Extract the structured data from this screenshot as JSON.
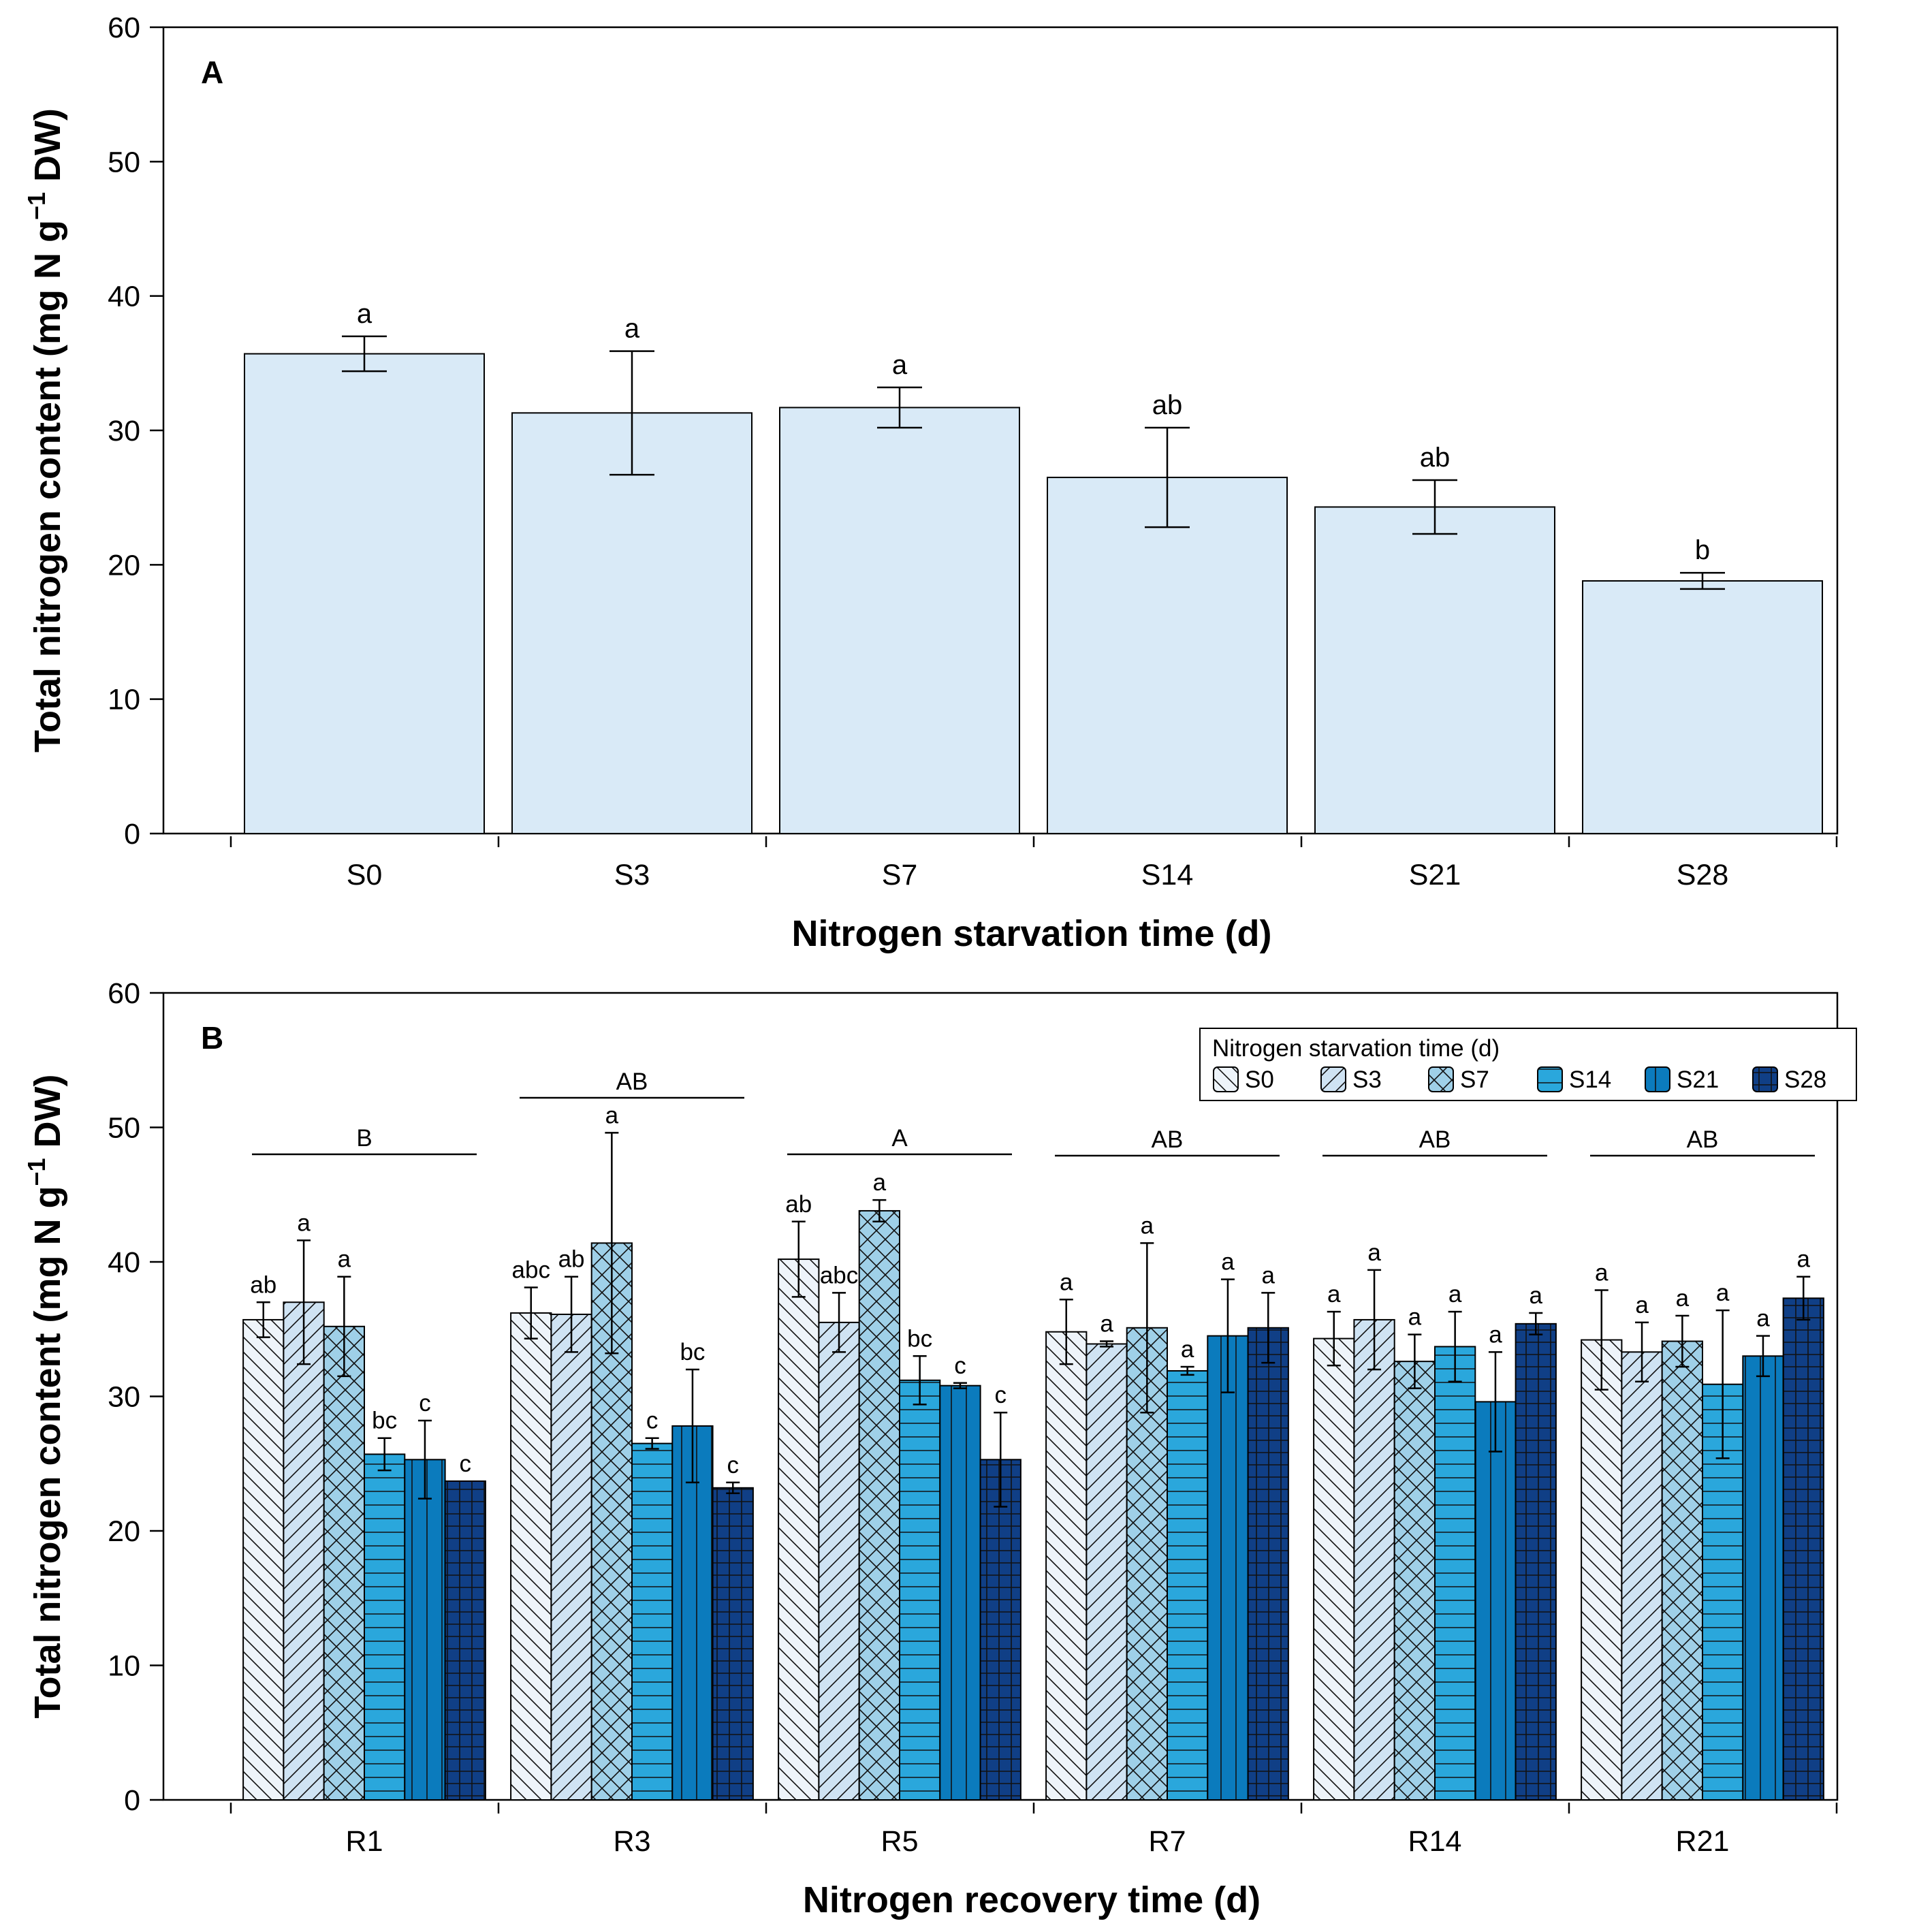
{
  "colors": {
    "S0": "#eef4fa",
    "S3": "#cfe3f3",
    "S7": "#9fd0e8",
    "S14": "#2aa7dc",
    "S21": "#0b7bbd",
    "S28": "#103f86",
    "panelA_bar": "#d9eaf7"
  },
  "chart_data": [
    {
      "type": "bar",
      "panel": "A",
      "xlabel": "Nitrogen starvation time (d)",
      "ylabel_main": "Total nitrogen content (mg N g",
      "ylabel_sup": "−1",
      "ylabel_end": " DW)",
      "ylim": [
        0,
        60
      ],
      "yticks": [
        "0",
        "10",
        "20",
        "30",
        "40",
        "50",
        "60"
      ],
      "categories": [
        "S0",
        "S3",
        "S7",
        "S14",
        "S21",
        "S28"
      ],
      "values": [
        35.7,
        31.3,
        31.7,
        26.5,
        24.3,
        18.8
      ],
      "errors": [
        1.3,
        4.6,
        1.5,
        3.7,
        2.0,
        0.6
      ],
      "letters": [
        "a",
        "a",
        "a",
        "ab",
        "ab",
        "b"
      ]
    },
    {
      "type": "bar",
      "panel": "B",
      "xlabel": "Nitrogen recovery time (d)",
      "ylabel_main": "Total nitrogen content (mg N g",
      "ylabel_sup": "−1",
      "ylabel_end": " DW)",
      "ylim": [
        0,
        60
      ],
      "yticks": [
        "0",
        "10",
        "20",
        "30",
        "40",
        "50",
        "60"
      ],
      "categories": [
        "R1",
        "R3",
        "R5",
        "R7",
        "R14",
        "R21"
      ],
      "group_letters": [
        "B",
        "AB",
        "A",
        "AB",
        "AB",
        "AB"
      ],
      "group_line_y": [
        48.0,
        52.2,
        48.0,
        47.9,
        47.9,
        47.9
      ],
      "legend_title": "Nitrogen starvation time (d)",
      "series": [
        {
          "name": "S0",
          "values": [
            35.7,
            36.2,
            40.2,
            34.8,
            34.3,
            34.2
          ],
          "errors": [
            1.3,
            1.9,
            2.8,
            2.4,
            2.0,
            3.7
          ],
          "letters": [
            "ab",
            "abc",
            "ab",
            "a",
            "a",
            "a"
          ]
        },
        {
          "name": "S3",
          "values": [
            37.0,
            36.1,
            35.5,
            33.9,
            35.7,
            33.3
          ],
          "errors": [
            4.6,
            2.8,
            2.2,
            0.2,
            3.7,
            2.2
          ],
          "letters": [
            "a",
            "ab",
            "abc",
            "a",
            "a",
            "a"
          ]
        },
        {
          "name": "S7",
          "values": [
            35.2,
            41.4,
            43.8,
            35.1,
            32.6,
            34.1
          ],
          "errors": [
            3.7,
            8.2,
            0.8,
            6.3,
            2.0,
            1.9
          ],
          "letters": [
            "a",
            "a",
            "a",
            "a",
            "a",
            "a"
          ]
        },
        {
          "name": "S14",
          "values": [
            25.7,
            26.5,
            31.2,
            31.9,
            33.7,
            30.9
          ],
          "errors": [
            1.2,
            0.4,
            1.8,
            0.3,
            2.6,
            5.5
          ],
          "letters": [
            "bc",
            "c",
            "bc",
            "a",
            "a",
            "a"
          ]
        },
        {
          "name": "S21",
          "values": [
            25.3,
            27.8,
            30.8,
            34.5,
            29.6,
            33.0
          ],
          "errors": [
            2.9,
            4.2,
            0.2,
            4.2,
            3.7,
            1.5
          ],
          "letters": [
            "c",
            "bc",
            "c",
            "a",
            "a",
            "a"
          ]
        },
        {
          "name": "S28",
          "values": [
            23.7,
            23.2,
            25.3,
            35.1,
            35.4,
            37.3
          ],
          "errors": [
            0.0,
            0.4,
            3.5,
            2.6,
            0.8,
            1.6
          ],
          "letters": [
            "c",
            "c",
            "c",
            "a",
            "a",
            "a"
          ]
        }
      ]
    }
  ],
  "panel_labels": [
    "A",
    "B"
  ]
}
